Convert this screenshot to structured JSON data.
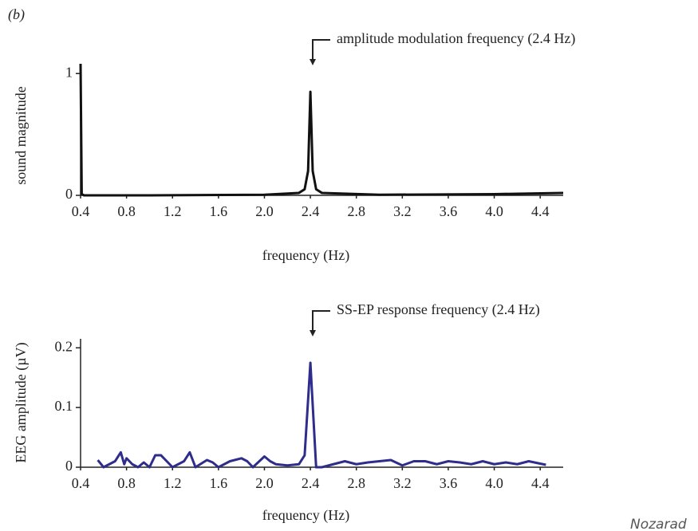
{
  "panel_label": "(b)",
  "credit": "Nozarad",
  "chart_data": [
    {
      "type": "line",
      "annotation": "amplitude modulation frequency (2.4 Hz)",
      "xlabel": "frequency (Hz)",
      "ylabel": "sound magnitude",
      "x": [
        0.4,
        0.41,
        0.43,
        1.0,
        2.0,
        2.3,
        2.35,
        2.38,
        2.4,
        2.42,
        2.45,
        2.5,
        3.0,
        4.0,
        4.6
      ],
      "values": [
        1.08,
        0.01,
        0,
        0,
        0.005,
        0.02,
        0.05,
        0.2,
        0.85,
        0.2,
        0.05,
        0.02,
        0.005,
        0.01,
        0.02
      ],
      "color": "#111111",
      "xlim": [
        0.4,
        4.6
      ],
      "xticks": [
        0.4,
        0.8,
        1.2,
        1.6,
        {
          "value": 2,
          "label": "2.0"
        },
        2.4,
        2.8,
        3.2,
        3.6,
        {
          "value": 4,
          "label": "4.0"
        },
        4.4
      ],
      "ylim": [
        0,
        1.08
      ],
      "yticks": [
        0,
        1
      ]
    },
    {
      "type": "line",
      "annotation": "SS-EP response frequency (2.4 Hz)",
      "xlabel": "frequency (Hz)",
      "ylabel": "EEG amplitude (µV)",
      "x": [
        0.55,
        0.6,
        0.7,
        0.75,
        0.78,
        0.8,
        0.85,
        0.9,
        0.95,
        1.0,
        1.05,
        1.1,
        1.15,
        1.2,
        1.3,
        1.35,
        1.4,
        1.5,
        1.55,
        1.6,
        1.7,
        1.8,
        1.85,
        1.9,
        2.0,
        2.05,
        2.1,
        2.2,
        2.3,
        2.35,
        2.4,
        2.45,
        2.5,
        2.6,
        2.7,
        2.8,
        2.9,
        3.0,
        3.1,
        3.2,
        3.3,
        3.4,
        3.5,
        3.6,
        3.7,
        3.8,
        3.9,
        4.0,
        4.1,
        4.2,
        4.3,
        4.4,
        4.45
      ],
      "values": [
        0.012,
        0,
        0.01,
        0.025,
        0.005,
        0.015,
        0.005,
        0,
        0.008,
        0,
        0.02,
        0.02,
        0.01,
        0,
        0.01,
        0.025,
        0,
        0.012,
        0.008,
        0,
        0.01,
        0.015,
        0.01,
        0,
        0.018,
        0.01,
        0.005,
        0.003,
        0.005,
        0.02,
        0.175,
        0,
        0,
        0.005,
        0.01,
        0.005,
        0.008,
        0.01,
        0.012,
        0.003,
        0.01,
        0.01,
        0.005,
        0.01,
        0.008,
        0.005,
        0.01,
        0.005,
        0.008,
        0.005,
        0.01,
        0.006,
        0.004
      ],
      "color": "#2e2d8c",
      "xlim": [
        0.4,
        4.6
      ],
      "xticks": [
        0.4,
        0.8,
        1.2,
        1.6,
        {
          "value": 2,
          "label": "2.0"
        },
        2.4,
        2.8,
        3.2,
        3.6,
        {
          "value": 4,
          "label": "4.0"
        },
        4.4
      ],
      "ylim": [
        0,
        0.215
      ],
      "yticks": [
        0,
        0.1,
        0.2
      ]
    }
  ]
}
